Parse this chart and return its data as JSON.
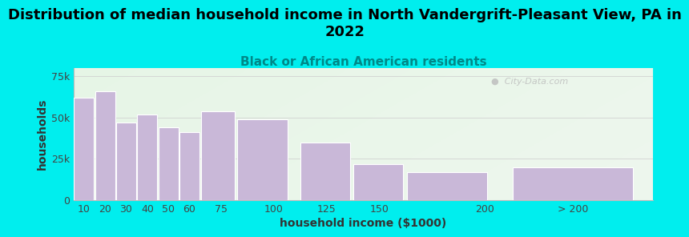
{
  "title": "Distribution of median household income in North Vandergrift-Pleasant View, PA in\n2022",
  "subtitle": "Black or African American residents",
  "xlabel": "household income ($1000)",
  "ylabel": "households",
  "background_color": "#00EEEE",
  "bar_color": "#C9B8D8",
  "bar_edge_color": "#ffffff",
  "categories": [
    "10",
    "20",
    "30",
    "40",
    "50",
    "60",
    "75",
    "100",
    "125",
    "150",
    "200",
    "> 200"
  ],
  "values": [
    62000,
    66000,
    47000,
    52000,
    44000,
    41000,
    54000,
    49000,
    35000,
    22000,
    17000,
    20000
  ],
  "bar_lefts": [
    5,
    15,
    25,
    35,
    45,
    55,
    65,
    82,
    112,
    137,
    162,
    212
  ],
  "bar_widths": [
    10,
    10,
    10,
    10,
    10,
    10,
    17,
    25,
    25,
    25,
    40,
    60
  ],
  "xtick_positions": [
    10,
    20,
    30,
    40,
    50,
    60,
    75,
    100,
    125,
    150,
    200
  ],
  "xtick_labels": [
    "10",
    "20",
    "30",
    "40",
    "50",
    "60",
    "75",
    "100",
    "125",
    "150",
    "200"
  ],
  "yticks": [
    0,
    25000,
    50000,
    75000
  ],
  "ytick_labels": [
    "0",
    "25k",
    "50k",
    "75k"
  ],
  "xlim": [
    5,
    280
  ],
  "ylim": [
    0,
    80000
  ],
  "title_fontsize": 13,
  "subtitle_fontsize": 11,
  "axis_label_fontsize": 10,
  "tick_fontsize": 9,
  "watermark": "  City-Data.com"
}
